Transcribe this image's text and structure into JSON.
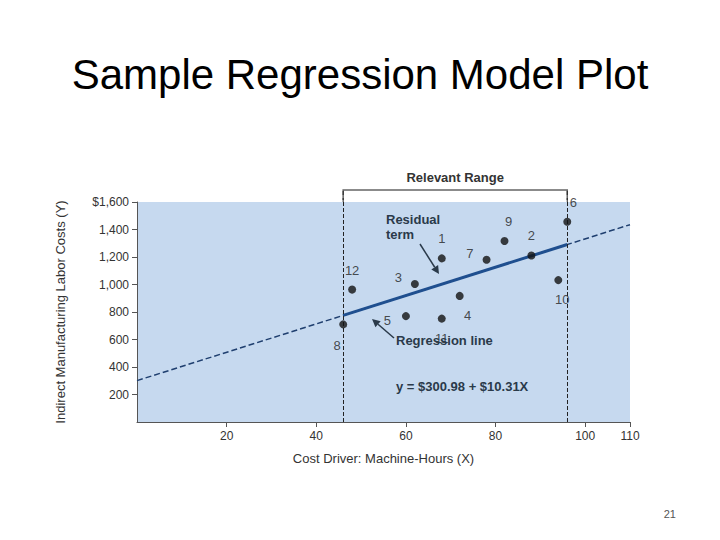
{
  "page_number": "21",
  "chart_data": {
    "type": "scatter",
    "title": "Sample Regression Model Plot",
    "x_label": "Cost Driver: Machine-Hours (X)",
    "y_label": "Indirect Manufacturing Labor Costs (Y)",
    "xlim": [
      0,
      110
    ],
    "xticks": [
      20,
      40,
      60,
      80,
      100,
      110
    ],
    "ylim": [
      0,
      1600
    ],
    "yticks": [
      200,
      400,
      600,
      800,
      {
        "value": 1000,
        "label": "1,000"
      },
      {
        "value": 1200,
        "label": "1,200"
      },
      {
        "value": 1400,
        "label": "1,400"
      },
      {
        "value": 1600,
        "label": "$1,600"
      }
    ],
    "grid": false,
    "series": [
      {
        "type": "scatter",
        "color": "#111111",
        "marker": "circle",
        "x": [
          68,
          88,
          62,
          72,
          60,
          96,
          78,
          46,
          82,
          94,
          68,
          48
        ],
        "values": [
          1190,
          1211,
          1004,
          917,
          770,
          1456,
          1180,
          710,
          1316,
          1032,
          752,
          963
        ],
        "point_labels": [
          "1",
          "2",
          "3",
          "4",
          "5",
          "6",
          "7",
          "8",
          "9",
          "10",
          "11",
          "12"
        ]
      },
      {
        "type": "line",
        "color": "#1f3f6f",
        "line_style": "dashed",
        "x": [
          0,
          110
        ],
        "values": [
          300.98,
          1435.08
        ]
      },
      {
        "type": "line",
        "color": "#1f4f8f",
        "line_style": "solid",
        "x": [
          46,
          96
        ],
        "values": [
          775.24,
          1290.74
        ]
      }
    ],
    "relevant_range": {
      "label": "Relevant Range",
      "x": [
        46,
        96
      ]
    },
    "annotations": [
      "Residual term",
      "Regression line",
      "y = $300.98 + $10.31X"
    ]
  }
}
